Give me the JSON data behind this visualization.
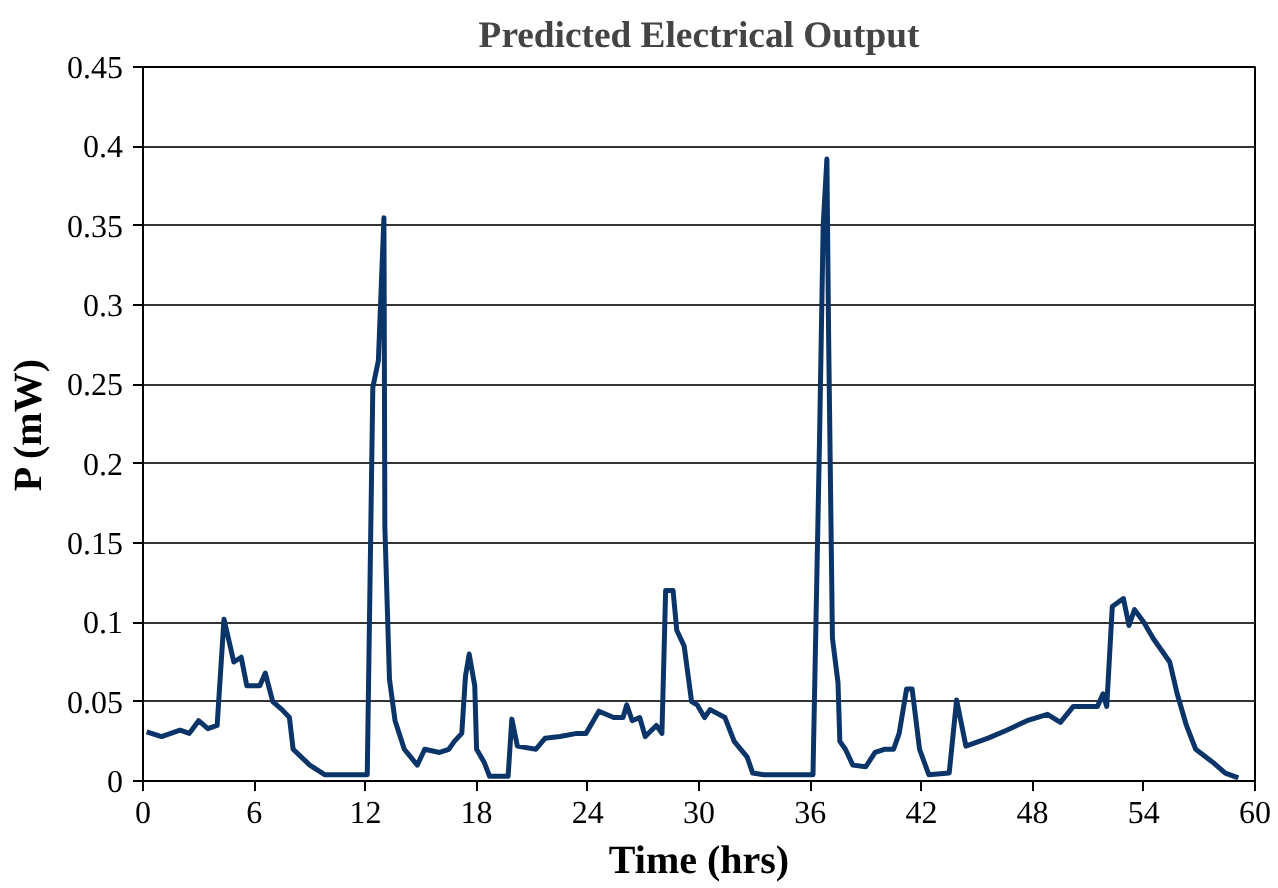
{
  "chart_data": {
    "type": "line",
    "title": "Predicted Electrical Output",
    "xlabel": "Time (hrs)",
    "ylabel": "P (mW)",
    "xlim": [
      0,
      60
    ],
    "xticks": [
      0,
      6,
      12,
      18,
      24,
      30,
      36,
      42,
      48,
      54,
      60
    ],
    "ylim": [
      0,
      0.45
    ],
    "yticks": [
      0,
      0.05,
      0.1,
      0.15,
      0.2,
      0.25,
      0.3,
      0.35,
      0.4,
      0.45
    ],
    "grid": "y",
    "marker": "none",
    "line_style": "solid",
    "series": [
      {
        "color": "#0b3569",
        "x": [
          0.2,
          1,
          2,
          2.5,
          3,
          3.5,
          4,
          4.37,
          4.9,
          5.3,
          5.6,
          6.3,
          6.6,
          7,
          7.5,
          7.9,
          8.1,
          9,
          9.8,
          11.9,
          12.1,
          12.4,
          12.7,
          13.0,
          13.05,
          13.3,
          13.6,
          14.1,
          14.8,
          15.2,
          16,
          16.5,
          16.8,
          17.2,
          17.4,
          17.6,
          17.9,
          18,
          18.4,
          18.7,
          19.7,
          19.9,
          20.2,
          21.2,
          21.7,
          22.5,
          23.4,
          23.9,
          24.6,
          25.4,
          25.9,
          26.1,
          26.4,
          26.8,
          27.1,
          27.7,
          28.0,
          28.2,
          28.6,
          28.8,
          29.2,
          29.6,
          29.9,
          30.3,
          30.6,
          31.4,
          31.9,
          32.6,
          32.9,
          33.5,
          35.8,
          36.15,
          36.5,
          36.7,
          36.9,
          37.0,
          37.2,
          37.5,
          37.6,
          37.9,
          38.3,
          39,
          39.5,
          40,
          40.5,
          40.8,
          41.2,
          41.5,
          41.9,
          42.4,
          43.5,
          43.9,
          44.4,
          45.6,
          46.6,
          47.7,
          48.8,
          49.5,
          50.2,
          51.5,
          51.8,
          52.0,
          52.3,
          52.9,
          53.2,
          53.5,
          54.0,
          54.5,
          55.4,
          55.8,
          56.3,
          56.8,
          57.7,
          58.4,
          59.1
        ],
        "values": [
          0.031,
          0.028,
          0.032,
          0.03,
          0.038,
          0.033,
          0.035,
          0.102,
          0.075,
          0.078,
          0.06,
          0.06,
          0.068,
          0.05,
          0.045,
          0.04,
          0.02,
          0.01,
          0.004,
          0.004,
          0.004,
          0.248,
          0.265,
          0.355,
          0.16,
          0.064,
          0.038,
          0.02,
          0.01,
          0.02,
          0.018,
          0.02,
          0.025,
          0.03,
          0.066,
          0.08,
          0.06,
          0.02,
          0.012,
          0.003,
          0.003,
          0.039,
          0.022,
          0.02,
          0.027,
          0.028,
          0.03,
          0.03,
          0.044,
          0.04,
          0.04,
          0.048,
          0.038,
          0.04,
          0.028,
          0.035,
          0.03,
          0.12,
          0.12,
          0.095,
          0.085,
          0.05,
          0.048,
          0.04,
          0.045,
          0.04,
          0.025,
          0.015,
          0.005,
          0.004,
          0.004,
          0.004,
          0.213,
          0.35,
          0.392,
          0.274,
          0.09,
          0.062,
          0.025,
          0.02,
          0.01,
          0.009,
          0.018,
          0.02,
          0.02,
          0.03,
          0.058,
          0.058,
          0.02,
          0.004,
          0.005,
          0.051,
          0.022,
          0.027,
          0.032,
          0.038,
          0.042,
          0.037,
          0.047,
          0.047,
          0.055,
          0.047,
          0.11,
          0.115,
          0.098,
          0.108,
          0.1,
          0.09,
          0.075,
          0.055,
          0.035,
          0.02,
          0.012,
          0.005,
          0.002
        ]
      }
    ]
  }
}
